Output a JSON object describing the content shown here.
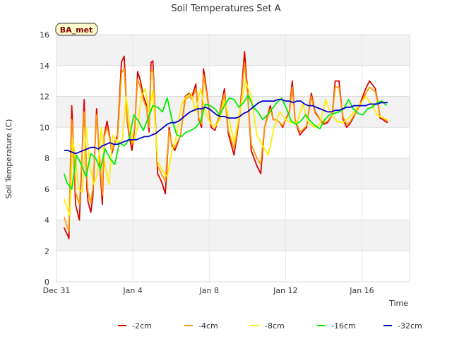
{
  "chart_data": {
    "type": "line",
    "title": "Soil Temperatures Set A",
    "xlabel": "Time",
    "ylabel": "Soil Temperature (C)",
    "badge": "BA_met",
    "xlim": [
      0,
      18.5
    ],
    "ylim": [
      0,
      16
    ],
    "yticks": [
      0,
      2,
      4,
      6,
      8,
      10,
      12,
      14,
      16
    ],
    "xticks": [
      {
        "value": 0,
        "label": "Dec 31"
      },
      {
        "value": 4,
        "label": "Jan 4"
      },
      {
        "value": 8,
        "label": "Jan 8"
      },
      {
        "value": 12,
        "label": "Jan 12"
      },
      {
        "value": 16,
        "label": "Jan 16"
      }
    ],
    "grid": true,
    "legend_position": "bottom",
    "series": [
      {
        "name": "-2cm",
        "color": "#dd0000",
        "x": [
          0.4,
          0.55,
          0.65,
          0.8,
          0.9,
          1.0,
          1.2,
          1.3,
          1.45,
          1.6,
          1.65,
          1.8,
          1.9,
          2.1,
          2.25,
          2.4,
          2.5,
          2.65,
          2.8,
          2.9,
          3.05,
          3.2,
          3.4,
          3.55,
          3.7,
          3.8,
          3.95,
          4.1,
          4.25,
          4.4,
          4.55,
          4.7,
          4.85,
          4.95,
          5.05,
          5.3,
          5.5,
          5.7,
          5.9,
          6.05,
          6.2,
          6.5,
          6.75,
          6.95,
          7.1,
          7.3,
          7.45,
          7.6,
          7.7,
          7.8,
          7.95,
          8.1,
          8.3,
          8.5,
          8.8,
          9.0,
          9.3,
          9.6,
          9.85,
          10.0,
          10.2,
          10.5,
          10.7,
          10.9,
          11.2,
          11.35,
          11.5,
          11.7,
          11.85,
          12.0,
          12.2,
          12.35,
          12.5,
          12.75,
          12.95,
          13.1,
          13.35,
          13.55,
          13.8,
          14.0,
          14.2,
          14.45,
          14.6,
          14.8,
          15.0,
          15.2,
          15.35,
          15.5,
          15.7,
          15.9,
          16.05,
          16.2,
          16.4,
          16.7,
          16.85,
          16.95,
          17.1,
          17.2,
          17.35
        ],
        "values": [
          3.5,
          3.1,
          2.8,
          11.4,
          8.5,
          5.0,
          4.0,
          7.0,
          11.8,
          6.0,
          5.2,
          4.5,
          5.5,
          11.2,
          8.0,
          5.0,
          9.5,
          10.4,
          9.3,
          8.3,
          9.0,
          9.5,
          14.2,
          14.6,
          10.5,
          9.5,
          8.5,
          10.0,
          13.6,
          13.0,
          12.0,
          11.5,
          9.7,
          14.2,
          14.3,
          7.0,
          6.5,
          5.7,
          10.0,
          8.8,
          8.5,
          9.5,
          12.0,
          12.2,
          12.0,
          12.8,
          10.5,
          10.0,
          13.8,
          13.0,
          11.5,
          10.0,
          9.8,
          10.6,
          12.5,
          9.6,
          8.2,
          10.8,
          14.9,
          12.5,
          8.5,
          7.5,
          7.0,
          10.0,
          11.4,
          10.5,
          10.5,
          10.3,
          10.0,
          10.5,
          11.0,
          13.0,
          10.5,
          9.5,
          9.8,
          10.0,
          12.2,
          11.0,
          10.5,
          10.2,
          10.3,
          10.8,
          13.0,
          13.0,
          10.6,
          10.0,
          10.2,
          10.5,
          11.0,
          11.5,
          12.0,
          12.5,
          13.0,
          12.5,
          11.5,
          10.6,
          10.5,
          10.4,
          10.3
        ]
      },
      {
        "name": "-4cm",
        "color": "#ff9900",
        "x": [
          0.4,
          0.55,
          0.65,
          0.8,
          0.9,
          1.0,
          1.2,
          1.3,
          1.45,
          1.6,
          1.65,
          1.8,
          1.9,
          2.1,
          2.25,
          2.4,
          2.5,
          2.65,
          2.8,
          2.9,
          3.05,
          3.2,
          3.4,
          3.55,
          3.7,
          3.8,
          3.95,
          4.1,
          4.25,
          4.4,
          4.55,
          4.7,
          4.85,
          4.95,
          5.05,
          5.3,
          5.5,
          5.7,
          5.9,
          6.05,
          6.2,
          6.5,
          6.75,
          6.95,
          7.1,
          7.3,
          7.45,
          7.6,
          7.7,
          7.8,
          7.95,
          8.1,
          8.3,
          8.5,
          8.8,
          9.0,
          9.3,
          9.6,
          9.85,
          10.0,
          10.2,
          10.5,
          10.7,
          10.9,
          11.2,
          11.35,
          11.5,
          11.7,
          11.85,
          12.0,
          12.2,
          12.35,
          12.5,
          12.75,
          12.95,
          13.1,
          13.35,
          13.55,
          13.8,
          14.0,
          14.2,
          14.45,
          14.6,
          14.8,
          15.0,
          15.2,
          15.35,
          15.5,
          15.7,
          15.9,
          16.05,
          16.2,
          16.4,
          16.7,
          16.85,
          16.95,
          17.1,
          17.2,
          17.35
        ],
        "values": [
          4.2,
          3.6,
          3.3,
          10.5,
          8.7,
          5.8,
          5.0,
          7.3,
          11.0,
          6.6,
          5.8,
          5.1,
          6.0,
          10.8,
          8.3,
          5.6,
          9.4,
          10.0,
          9.2,
          8.5,
          9.0,
          9.3,
          13.5,
          13.8,
          10.6,
          9.7,
          8.9,
          10.1,
          13.1,
          12.6,
          11.8,
          11.3,
          10.0,
          13.6,
          13.7,
          7.5,
          7.0,
          6.5,
          9.8,
          8.9,
          8.7,
          9.5,
          11.8,
          12.0,
          11.8,
          12.5,
          10.6,
          10.2,
          13.4,
          12.7,
          11.4,
          10.2,
          10.0,
          10.6,
          12.2,
          9.8,
          8.6,
          10.8,
          14.2,
          12.2,
          8.9,
          8.0,
          7.6,
          10.0,
          11.2,
          10.5,
          10.5,
          10.3,
          10.1,
          10.5,
          10.9,
          12.6,
          10.5,
          9.7,
          9.9,
          10.1,
          12.0,
          10.9,
          10.5,
          10.3,
          10.4,
          10.8,
          12.6,
          12.6,
          10.7,
          10.2,
          10.3,
          10.6,
          11.0,
          11.4,
          11.8,
          12.2,
          12.6,
          12.3,
          11.5,
          10.7,
          10.6,
          10.5,
          10.4
        ]
      },
      {
        "name": "-8cm",
        "color": "#ffee00",
        "x": [
          0.4,
          0.55,
          0.7,
          0.85,
          1.0,
          1.15,
          1.35,
          1.55,
          1.75,
          1.95,
          2.15,
          2.35,
          2.55,
          2.75,
          2.95,
          3.2,
          3.45,
          3.65,
          3.85,
          4.05,
          4.25,
          4.45,
          4.65,
          4.85,
          5.05,
          5.3,
          5.55,
          5.8,
          6.05,
          6.3,
          6.55,
          6.8,
          7.05,
          7.3,
          7.55,
          7.8,
          8.05,
          8.3,
          8.55,
          8.8,
          9.05,
          9.3,
          9.6,
          9.9,
          10.2,
          10.5,
          10.8,
          11.1,
          11.4,
          11.7,
          12.0,
          12.3,
          12.6,
          12.9,
          13.2,
          13.5,
          13.8,
          14.1,
          14.4,
          14.7,
          15.0,
          15.3,
          15.6,
          15.9,
          16.2,
          16.5,
          16.8,
          17.1,
          17.35
        ],
        "values": [
          5.4,
          4.8,
          4.3,
          9.2,
          8.0,
          6.0,
          5.8,
          10.0,
          7.5,
          6.3,
          7.0,
          10.0,
          7.5,
          6.3,
          9.5,
          9.0,
          9.2,
          12.0,
          10.0,
          9.0,
          10.0,
          12.0,
          12.5,
          11.0,
          12.4,
          7.8,
          7.2,
          6.8,
          8.5,
          9.5,
          11.5,
          12.0,
          12.2,
          11.0,
          12.5,
          11.0,
          10.3,
          10.0,
          10.5,
          11.8,
          10.5,
          9.0,
          11.0,
          13.0,
          12.0,
          9.5,
          8.8,
          8.2,
          10.0,
          11.0,
          10.5,
          10.3,
          10.3,
          11.5,
          10.3,
          10.0,
          10.2,
          11.8,
          10.8,
          10.4,
          10.3,
          10.6,
          11.0,
          11.5,
          12.0,
          11.5,
          10.8,
          10.6,
          10.5
        ]
      },
      {
        "name": "-16cm",
        "color": "#00ee00",
        "x": [
          0.4,
          0.55,
          0.8,
          1.05,
          1.3,
          1.55,
          1.8,
          2.05,
          2.3,
          2.55,
          2.8,
          3.05,
          3.3,
          3.55,
          3.8,
          4.05,
          4.3,
          4.55,
          4.8,
          5.05,
          5.3,
          5.55,
          5.8,
          6.05,
          6.3,
          6.55,
          6.8,
          7.05,
          7.3,
          7.55,
          7.8,
          8.05,
          8.3,
          8.55,
          8.8,
          9.05,
          9.3,
          9.55,
          9.8,
          10.05,
          10.3,
          10.55,
          10.8,
          11.05,
          11.3,
          11.55,
          11.8,
          12.05,
          12.3,
          12.55,
          12.8,
          13.05,
          13.3,
          13.55,
          13.8,
          14.05,
          14.3,
          14.55,
          14.8,
          15.05,
          15.3,
          15.55,
          15.8,
          16.05,
          16.3,
          16.55,
          16.8,
          17.05,
          17.3
        ],
        "values": [
          7.0,
          6.4,
          6.0,
          8.2,
          7.6,
          6.8,
          8.3,
          8.0,
          7.3,
          8.6,
          8.0,
          7.6,
          9.0,
          8.8,
          9.2,
          10.8,
          10.4,
          9.8,
          10.6,
          11.4,
          11.3,
          11.0,
          11.9,
          10.5,
          9.5,
          9.4,
          9.7,
          9.8,
          10.0,
          10.4,
          11.5,
          11.4,
          11.2,
          10.8,
          11.4,
          11.9,
          11.8,
          11.3,
          11.6,
          12.1,
          11.3,
          11.0,
          10.5,
          10.8,
          11.2,
          11.6,
          11.9,
          11.2,
          10.4,
          10.2,
          10.4,
          10.8,
          10.4,
          10.1,
          9.9,
          10.5,
          10.8,
          10.9,
          11.0,
          11.2,
          11.8,
          11.2,
          10.9,
          10.8,
          11.2,
          11.3,
          11.6,
          11.7,
          11.4
        ]
      },
      {
        "name": "-32cm",
        "color": "#0000cc",
        "x": [
          0.4,
          0.6,
          0.8,
          1.0,
          1.2,
          1.4,
          1.6,
          1.8,
          2.0,
          2.2,
          2.4,
          2.6,
          2.8,
          3.0,
          3.2,
          3.4,
          3.6,
          3.8,
          4.0,
          4.2,
          4.4,
          4.6,
          4.8,
          5.0,
          5.2,
          5.4,
          5.6,
          5.8,
          6.0,
          6.2,
          6.4,
          6.6,
          6.8,
          7.0,
          7.2,
          7.4,
          7.6,
          7.8,
          8.0,
          8.2,
          8.4,
          8.6,
          8.8,
          9.0,
          9.2,
          9.4,
          9.6,
          9.8,
          10.0,
          10.2,
          10.4,
          10.6,
          10.8,
          11.0,
          11.2,
          11.4,
          11.6,
          11.8,
          12.0,
          12.2,
          12.4,
          12.6,
          12.8,
          13.0,
          13.2,
          13.4,
          13.6,
          13.8,
          14.0,
          14.2,
          14.4,
          14.6,
          14.8,
          15.0,
          15.2,
          15.4,
          15.6,
          15.8,
          16.0,
          16.2,
          16.4,
          16.6,
          16.8,
          17.0,
          17.2,
          17.35
        ],
        "values": [
          8.5,
          8.5,
          8.4,
          8.3,
          8.4,
          8.5,
          8.6,
          8.7,
          8.7,
          8.6,
          8.8,
          8.9,
          9.0,
          8.9,
          8.9,
          9.0,
          9.1,
          9.2,
          9.2,
          9.2,
          9.3,
          9.4,
          9.4,
          9.5,
          9.6,
          9.8,
          10.0,
          10.2,
          10.3,
          10.3,
          10.4,
          10.6,
          10.8,
          11.0,
          11.1,
          11.2,
          11.2,
          11.3,
          11.2,
          11.0,
          10.8,
          10.7,
          10.7,
          10.6,
          10.6,
          10.6,
          10.7,
          10.9,
          11.0,
          11.2,
          11.4,
          11.6,
          11.7,
          11.7,
          11.7,
          11.7,
          11.8,
          11.8,
          11.7,
          11.7,
          11.6,
          11.7,
          11.7,
          11.5,
          11.4,
          11.4,
          11.3,
          11.2,
          11.1,
          11.0,
          11.0,
          11.1,
          11.1,
          11.2,
          11.3,
          11.3,
          11.4,
          11.4,
          11.4,
          11.4,
          11.5,
          11.5,
          11.5,
          11.6,
          11.6,
          11.6
        ]
      }
    ]
  }
}
